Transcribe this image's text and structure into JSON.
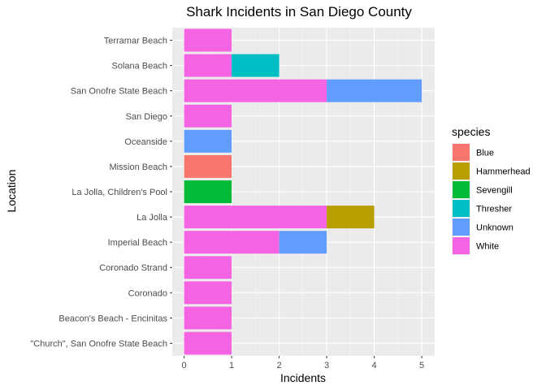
{
  "chart_data": {
    "type": "bar",
    "orientation": "horizontal",
    "stacked": true,
    "title": "Shark Incidents in San Diego County",
    "xlabel": "Incidents",
    "ylabel": "Location",
    "xlim": [
      0,
      5.2
    ],
    "xticks": [
      0,
      1,
      2,
      3,
      4,
      5
    ],
    "grid": true,
    "legend_title": "species",
    "legend_position": "right",
    "categories": [
      "Terramar Beach",
      "Solana Beach",
      "San Onofre State Beach",
      "San Diego",
      "Oceanside",
      "Mission Beach",
      "La Jolla, Children's Pool",
      "La Jolla",
      "Imperial Beach",
      "Coronado Strand",
      "Coronado",
      "Beacon's Beach - Encinitas",
      "\"Church\", San Onofre State Beach"
    ],
    "series": [
      {
        "name": "Blue",
        "color": "#F8766D",
        "values": [
          0,
          0,
          0,
          0,
          0,
          1,
          0,
          0,
          0,
          0,
          0,
          0,
          0
        ]
      },
      {
        "name": "Hammerhead",
        "color": "#B79F00",
        "values": [
          0,
          0,
          0,
          0,
          0,
          0,
          0,
          1,
          0,
          0,
          0,
          0,
          0
        ]
      },
      {
        "name": "Sevengill",
        "color": "#00BA38",
        "values": [
          0,
          0,
          0,
          0,
          0,
          0,
          1,
          0,
          0,
          0,
          0,
          0,
          0
        ]
      },
      {
        "name": "Thresher",
        "color": "#00BFC4",
        "values": [
          0,
          1,
          0,
          0,
          0,
          0,
          0,
          0,
          0,
          0,
          0,
          0,
          0
        ]
      },
      {
        "name": "Unknown",
        "color": "#619CFF",
        "values": [
          0,
          0,
          2,
          0,
          1,
          0,
          0,
          0,
          1,
          0,
          0,
          0,
          0
        ]
      },
      {
        "name": "White",
        "color": "#F564E3",
        "values": [
          1,
          1,
          3,
          1,
          0,
          0,
          0,
          3,
          2,
          1,
          1,
          1,
          1
        ]
      }
    ],
    "stack_order_left_to_right": [
      "White",
      "Unknown",
      "Thresher",
      "Sevengill",
      "Hammerhead",
      "Blue"
    ]
  },
  "colors": {
    "panel_background": "#EBEBEB",
    "grid_major": "#FFFFFF",
    "tick_text": "#4D4D4D"
  }
}
